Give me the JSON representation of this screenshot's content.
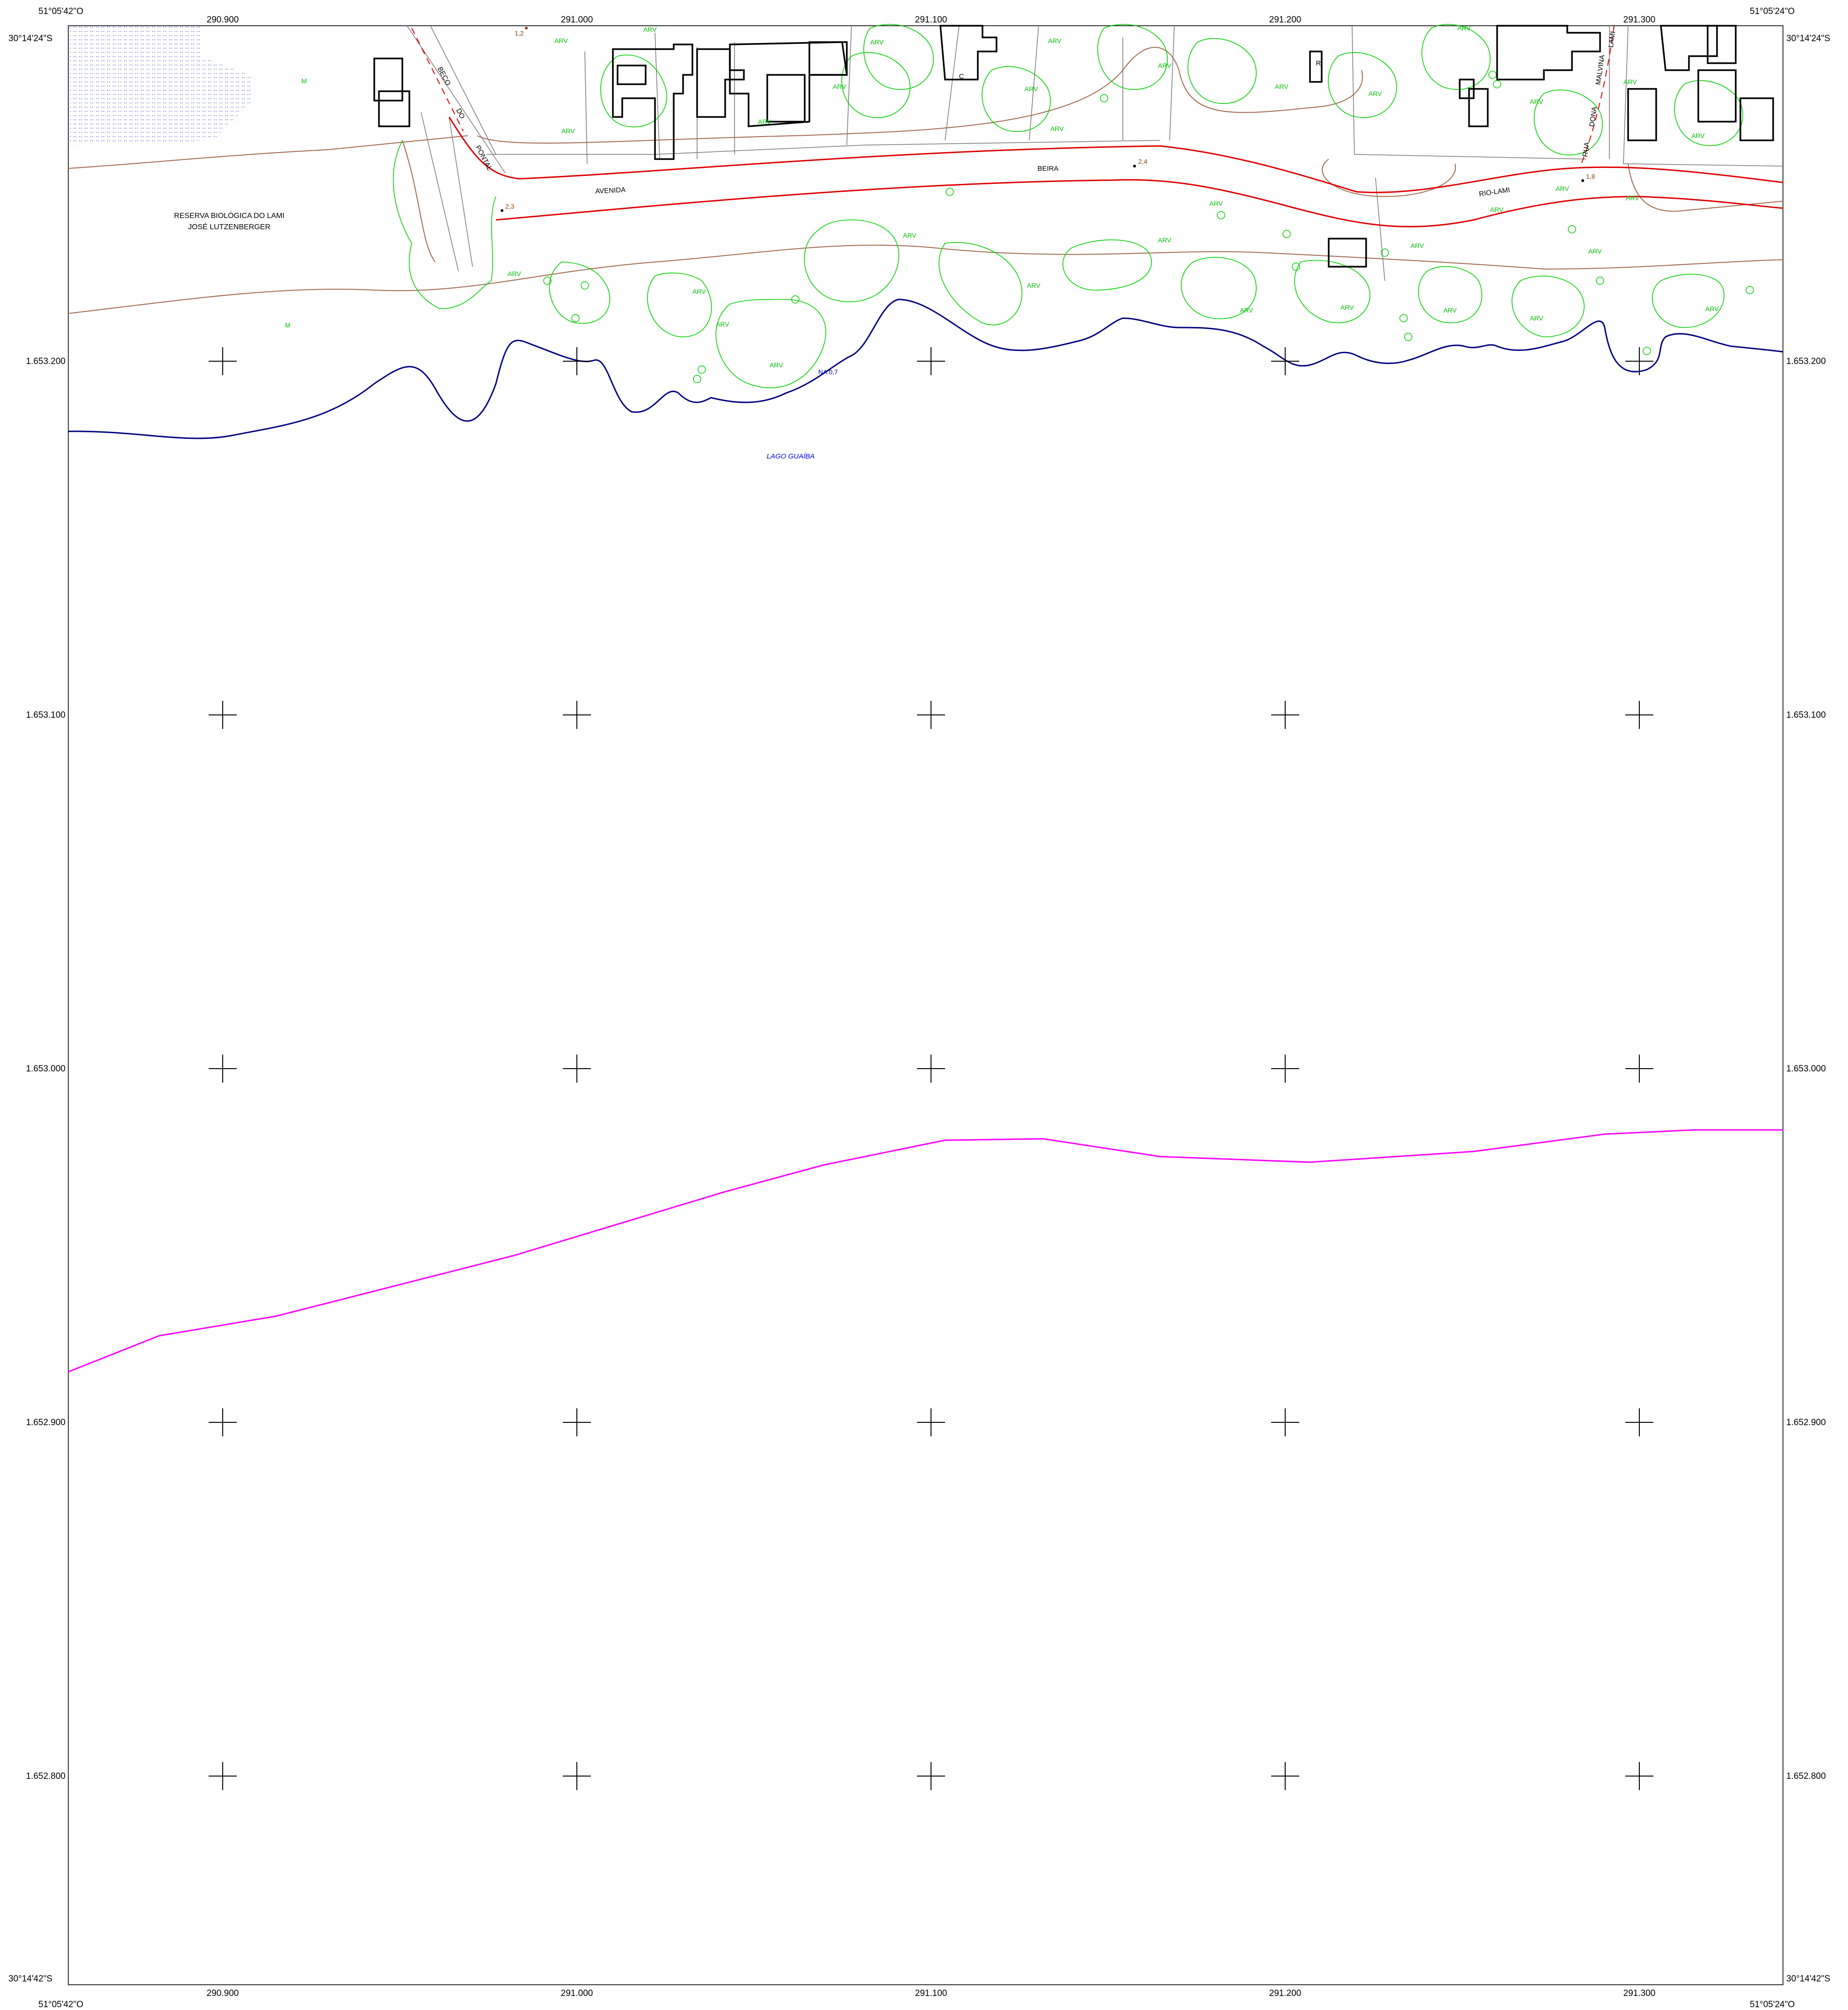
{
  "corners": {
    "top_left_lon": "51°05'42\"O",
    "top_right_lon": "51°05'24\"O",
    "bottom_left_lon": "51°05'42\"O",
    "bottom_right_lon": "51°05'24\"O",
    "top_left_lat": "30°14'24\"S",
    "top_right_lat": "30°14'24\"S",
    "bottom_left_lat": "30°14'42\"S",
    "bottom_right_lat": "30°14'42\"S"
  },
  "grid": {
    "eastings": [
      "290.900",
      "291.000",
      "291.100",
      "291.200",
      "291.300"
    ],
    "northings": [
      "1.653.200",
      "1.653.100",
      "1.653.000",
      "1.652.900",
      "1.652.800"
    ]
  },
  "reserve": {
    "line1": "RESERVA BIOLÓGICA DO LAMI",
    "line2": "JOSÉ LUTZENBERGER"
  },
  "streets": {
    "avenida": "AVENIDA",
    "beira": "BEIRA",
    "rio_lami": "RIO-LAMI",
    "beco": "BECO",
    "do": "DO",
    "pontal": "PONTAL",
    "rua": "RUA",
    "dona": "DONA",
    "malvina": "MALVINA",
    "lami": "LAMI"
  },
  "spot_heights": [
    "1,2",
    "2,3",
    "2,4",
    "1,8"
  ],
  "water": {
    "lake": "LAGO GUAÍBA",
    "level": "NA 0,7"
  },
  "symbols": {
    "tree": "ARV",
    "marsh": "M",
    "building_c": "C",
    "building_r": "R"
  },
  "colors": {
    "road": "#e00000",
    "vegetation": "#00d000",
    "contour": "#a06a50",
    "shoreline": "#000080",
    "boundary": "#ff00ff",
    "lake_label": "#0000ff"
  }
}
